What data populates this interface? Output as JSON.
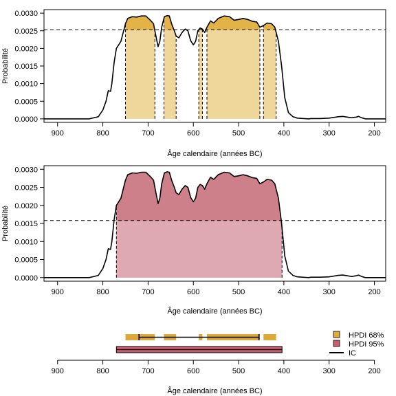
{
  "colors": {
    "hpdi68_fill": "#efd69a",
    "hpdi68_line": "#e0ad3a",
    "hpdi68_band": "#dfa938",
    "hpdi95_fill": "#cd7f8a",
    "hpdi95_inner": "#dea9b2",
    "hpdi95_band": "#c85a6e"
  },
  "chart_data": [
    {
      "type": "area",
      "ylabel": "Probabilité",
      "xlabel": "Âge calendaire (années BC)",
      "x_reversed": true,
      "xlim": [
        930,
        175
      ],
      "ylim": [
        -0.0001,
        0.0031
      ],
      "xticks": [
        900,
        800,
        700,
        600,
        500,
        400,
        300,
        200
      ],
      "yticks": [
        "0.0000",
        "0.0005",
        "0.0010",
        "0.0015",
        "0.0020",
        "0.0025",
        "0.0030"
      ],
      "threshold": 0.00253,
      "intervals": [
        [
          750,
          685
        ],
        [
          665,
          638
        ],
        [
          588,
          580
        ],
        [
          570,
          453
        ],
        [
          445,
          417
        ]
      ],
      "density": [
        [
          930,
          0
        ],
        [
          830,
          0
        ],
        [
          810,
          6e-05
        ],
        [
          800,
          0.00025
        ],
        [
          793,
          0.0005
        ],
        [
          788,
          0.0008
        ],
        [
          783,
          0.00078
        ],
        [
          780,
          0.001
        ],
        [
          775,
          0.0016
        ],
        [
          770,
          0.002
        ],
        [
          760,
          0.0022
        ],
        [
          755,
          0.00245
        ],
        [
          750,
          0.0027
        ],
        [
          745,
          0.00285
        ],
        [
          735,
          0.0029
        ],
        [
          725,
          0.00289
        ],
        [
          715,
          0.00292
        ],
        [
          705,
          0.00292
        ],
        [
          695,
          0.0028
        ],
        [
          688,
          0.0027
        ],
        [
          682,
          0.0023
        ],
        [
          678,
          0.00205
        ],
        [
          674,
          0.0022
        ],
        [
          670,
          0.0026
        ],
        [
          664,
          0.0029
        ],
        [
          658,
          0.00293
        ],
        [
          653,
          0.00292
        ],
        [
          648,
          0.0027
        ],
        [
          642,
          0.0025
        ],
        [
          638,
          0.00235
        ],
        [
          632,
          0.0023
        ],
        [
          625,
          0.00245
        ],
        [
          618,
          0.00255
        ],
        [
          612,
          0.0025
        ],
        [
          606,
          0.00222
        ],
        [
          600,
          0.0021
        ],
        [
          595,
          0.0022
        ],
        [
          590,
          0.0025
        ],
        [
          585,
          0.00258
        ],
        [
          580,
          0.00255
        ],
        [
          575,
          0.00245
        ],
        [
          570,
          0.0026
        ],
        [
          562,
          0.00278
        ],
        [
          555,
          0.00272
        ],
        [
          545,
          0.00285
        ],
        [
          532,
          0.00292
        ],
        [
          520,
          0.0029
        ],
        [
          510,
          0.0028
        ],
        [
          500,
          0.00282
        ],
        [
          490,
          0.00285
        ],
        [
          480,
          0.00282
        ],
        [
          470,
          0.00277
        ],
        [
          460,
          0.00275
        ],
        [
          453,
          0.0026
        ],
        [
          445,
          0.00265
        ],
        [
          437,
          0.00272
        ],
        [
          427,
          0.0027
        ],
        [
          420,
          0.0026
        ],
        [
          412,
          0.0022
        ],
        [
          405,
          0.0015
        ],
        [
          398,
          0.0006
        ],
        [
          390,
          0.00018
        ],
        [
          380,
          6e-05
        ],
        [
          370,
          2e-05
        ],
        [
          345,
          0
        ],
        [
          340,
          1e-05
        ],
        [
          320,
          1e-05
        ],
        [
          300,
          2e-05
        ],
        [
          280,
          6e-05
        ],
        [
          270,
          7e-05
        ],
        [
          260,
          5e-05
        ],
        [
          250,
          3e-05
        ],
        [
          240,
          5e-05
        ],
        [
          235,
          7e-05
        ],
        [
          228,
          3e-05
        ],
        [
          220,
          0
        ],
        [
          175,
          0
        ]
      ]
    },
    {
      "type": "area",
      "ylabel": "Probabilité",
      "xlabel": "Âge calendaire (années BC)",
      "x_reversed": true,
      "xlim": [
        930,
        175
      ],
      "ylim": [
        -0.0001,
        0.0031
      ],
      "xticks": [
        900,
        800,
        700,
        600,
        500,
        400,
        300,
        200
      ],
      "yticks": [
        "0.0000",
        "0.0005",
        "0.0010",
        "0.0015",
        "0.0020",
        "0.0025",
        "0.0030"
      ],
      "threshold": 0.00158,
      "intervals": [
        [
          770,
          404
        ]
      ],
      "density": [
        [
          930,
          0
        ],
        [
          830,
          0
        ],
        [
          810,
          6e-05
        ],
        [
          800,
          0.00025
        ],
        [
          793,
          0.0005
        ],
        [
          788,
          0.0008
        ],
        [
          783,
          0.00078
        ],
        [
          780,
          0.001
        ],
        [
          775,
          0.0016
        ],
        [
          770,
          0.002
        ],
        [
          760,
          0.0022
        ],
        [
          755,
          0.00245
        ],
        [
          750,
          0.0027
        ],
        [
          745,
          0.00285
        ],
        [
          735,
          0.0029
        ],
        [
          725,
          0.00289
        ],
        [
          715,
          0.00292
        ],
        [
          705,
          0.00292
        ],
        [
          695,
          0.0028
        ],
        [
          688,
          0.0027
        ],
        [
          682,
          0.0023
        ],
        [
          678,
          0.00205
        ],
        [
          674,
          0.0022
        ],
        [
          670,
          0.0026
        ],
        [
          664,
          0.0029
        ],
        [
          658,
          0.00293
        ],
        [
          653,
          0.00292
        ],
        [
          648,
          0.0027
        ],
        [
          642,
          0.0025
        ],
        [
          638,
          0.00235
        ],
        [
          632,
          0.0023
        ],
        [
          625,
          0.00245
        ],
        [
          618,
          0.00255
        ],
        [
          612,
          0.0025
        ],
        [
          606,
          0.00222
        ],
        [
          600,
          0.0021
        ],
        [
          595,
          0.0022
        ],
        [
          590,
          0.0025
        ],
        [
          585,
          0.00258
        ],
        [
          580,
          0.00255
        ],
        [
          575,
          0.00245
        ],
        [
          570,
          0.0026
        ],
        [
          562,
          0.00278
        ],
        [
          555,
          0.00272
        ],
        [
          545,
          0.00285
        ],
        [
          532,
          0.00292
        ],
        [
          520,
          0.0029
        ],
        [
          510,
          0.0028
        ],
        [
          500,
          0.00282
        ],
        [
          490,
          0.00285
        ],
        [
          480,
          0.00282
        ],
        [
          470,
          0.00277
        ],
        [
          460,
          0.00275
        ],
        [
          453,
          0.0026
        ],
        [
          445,
          0.00265
        ],
        [
          437,
          0.00272
        ],
        [
          427,
          0.0027
        ],
        [
          420,
          0.0026
        ],
        [
          412,
          0.0022
        ],
        [
          405,
          0.0015
        ],
        [
          398,
          0.0006
        ],
        [
          390,
          0.00018
        ],
        [
          380,
          6e-05
        ],
        [
          370,
          2e-05
        ],
        [
          345,
          0
        ],
        [
          340,
          1e-05
        ],
        [
          320,
          1e-05
        ],
        [
          300,
          2e-05
        ],
        [
          280,
          6e-05
        ],
        [
          270,
          7e-05
        ],
        [
          260,
          5e-05
        ],
        [
          250,
          3e-05
        ],
        [
          240,
          5e-05
        ],
        [
          235,
          7e-05
        ],
        [
          228,
          3e-05
        ],
        [
          220,
          0
        ],
        [
          175,
          0
        ]
      ]
    },
    {
      "type": "interval",
      "xlabel": "Âge calendaire (années BC)",
      "x_reversed": true,
      "xlim": [
        930,
        175
      ],
      "xticks": [
        900,
        800,
        700,
        600,
        500,
        400,
        300,
        200
      ],
      "hpdi68": [
        [
          750,
          685
        ],
        [
          665,
          638
        ],
        [
          588,
          580
        ],
        [
          570,
          453
        ],
        [
          445,
          417
        ]
      ],
      "hpdi95": [
        [
          770,
          404
        ]
      ],
      "ic": [
        720,
        455
      ],
      "legend": [
        "HPDI 68%",
        "HPDI 95%",
        "IC"
      ],
      "legend_position": "right"
    }
  ]
}
